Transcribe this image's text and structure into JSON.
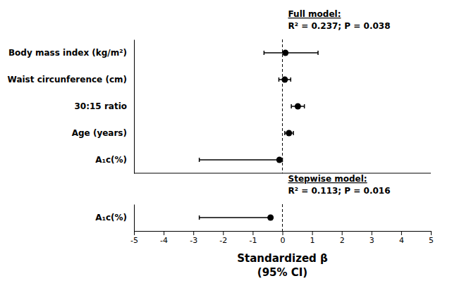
{
  "chart_data": {
    "type": "forest",
    "xlabel": [
      "Standardized β",
      "(95% CI)"
    ],
    "xlim": [
      -5,
      5
    ],
    "xticks": [
      -5,
      -4,
      -3,
      -2,
      -1,
      0,
      1,
      2,
      3,
      4,
      5
    ],
    "reference_x": 0,
    "series": [
      {
        "name": "Full model:",
        "stats": "R² = 0.237; P = 0.038",
        "color": "black",
        "categories": [
          "Body mass index (kg/m²)",
          "Waist circunference (cm)",
          "30:15 ratio",
          "Age (years)",
          "A₁c(%)"
        ],
        "values": [
          0.1,
          0.08,
          0.52,
          0.22,
          -0.1
        ],
        "ci_low": [
          -0.62,
          -0.12,
          0.3,
          0.08,
          -2.8
        ],
        "ci_high": [
          1.2,
          0.28,
          0.74,
          0.37,
          0.0
        ]
      },
      {
        "name": "Stepwise model:",
        "stats": "R² = 0.113; P = 0.016",
        "color": "black",
        "categories": [
          "A₁c(%)"
        ],
        "values": [
          -0.4
        ],
        "ci_low": [
          -2.8
        ],
        "ci_high": [
          -0.4
        ]
      }
    ]
  }
}
